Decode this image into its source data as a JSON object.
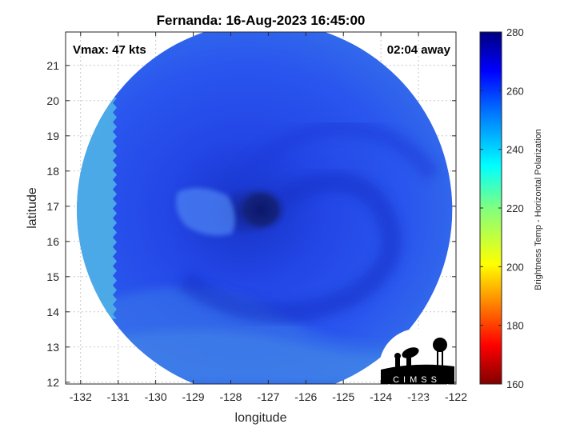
{
  "title": "Fernanda: 16-Aug-2023 16:45:00",
  "vmax_text": "Vmax: 47 kts",
  "away_text": "02:04 away",
  "map": {
    "xlabel": "longitude",
    "ylabel": "latitude",
    "xlim": [
      -132.4,
      -122
    ],
    "ylim": [
      11.95,
      21.95
    ],
    "xticks": [
      -132,
      -131,
      -130,
      -129,
      -128,
      -127,
      -126,
      -125,
      -124,
      -123,
      -122
    ],
    "yticks": [
      12,
      13,
      14,
      15,
      16,
      17,
      18,
      19,
      20,
      21
    ],
    "storm_center": [
      -127.2,
      16.9
    ],
    "swath_center": [
      -127.1,
      16.9
    ],
    "swath_radius_deg": 5.0,
    "cold_region": {
      "lon_max": -131.1,
      "lat_min": 13.8
    }
  },
  "colorbar": {
    "label": "Brightness Temp - Horizontal Polarization",
    "min": 160,
    "max": 280,
    "ticks": [
      160,
      180,
      200,
      220,
      240,
      260,
      280
    ],
    "colormap": [
      "#800000",
      "#ff0000",
      "#ff8000",
      "#ffff00",
      "#80ff80",
      "#00ffff",
      "#0080ff",
      "#0000ff",
      "#000080"
    ]
  },
  "logo": {
    "text": "CIMSS"
  },
  "colors": {
    "background": "#ffffff",
    "swath_warm": "#1a3fdc",
    "swath_mid": "#2a5cf0",
    "swath_cool": "#4aa6ea",
    "eye": "#0f1a70"
  }
}
